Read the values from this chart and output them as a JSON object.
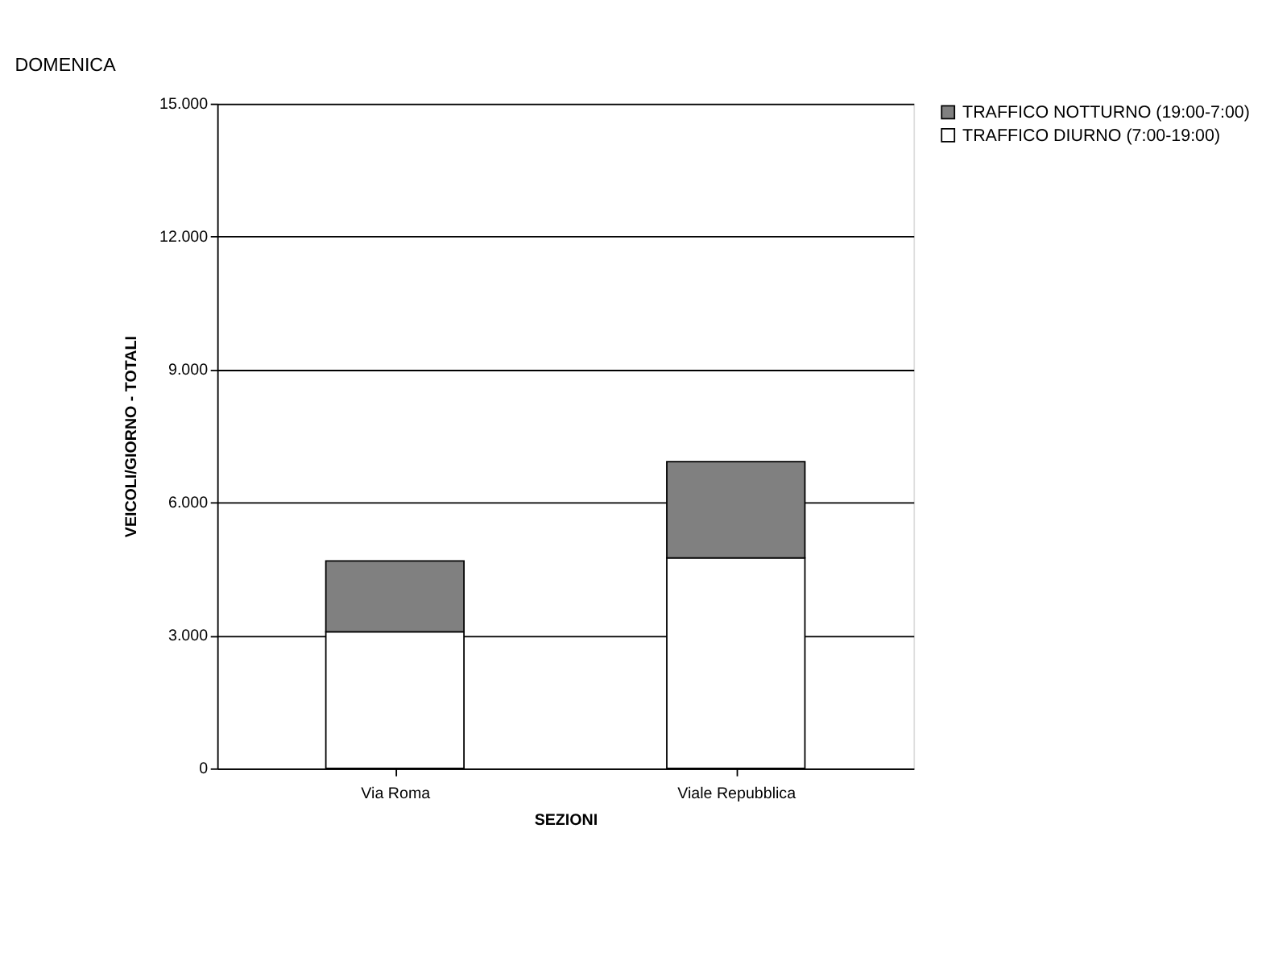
{
  "chart_data": {
    "type": "bar",
    "title": "DOMENICA",
    "xlabel": "SEZIONI",
    "ylabel": "VEICOLI/GIORNO - TOTALI",
    "categories": [
      "Via Roma",
      "Viale Repubblica"
    ],
    "stacked": true,
    "series": [
      {
        "name": "TRAFFICO DIURNO (7:00-19:00)",
        "color": "#ffffff",
        "values": [
          3080,
          4750
        ]
      },
      {
        "name": "TRAFFICO NOTTURNO (19:00-7:00)",
        "color": "#808080",
        "values": [
          1600,
          2170
        ]
      }
    ],
    "ylim": [
      0,
      15000
    ],
    "yticks": [
      {
        "value": 0,
        "label": "0"
      },
      {
        "value": 3000,
        "label": "3.000"
      },
      {
        "value": 6000,
        "label": "6.000"
      },
      {
        "value": 9000,
        "label": "9.000"
      },
      {
        "value": 12000,
        "label": "12.000"
      },
      {
        "value": 15000,
        "label": "15.000"
      }
    ],
    "grid": "y",
    "legend": "right"
  }
}
